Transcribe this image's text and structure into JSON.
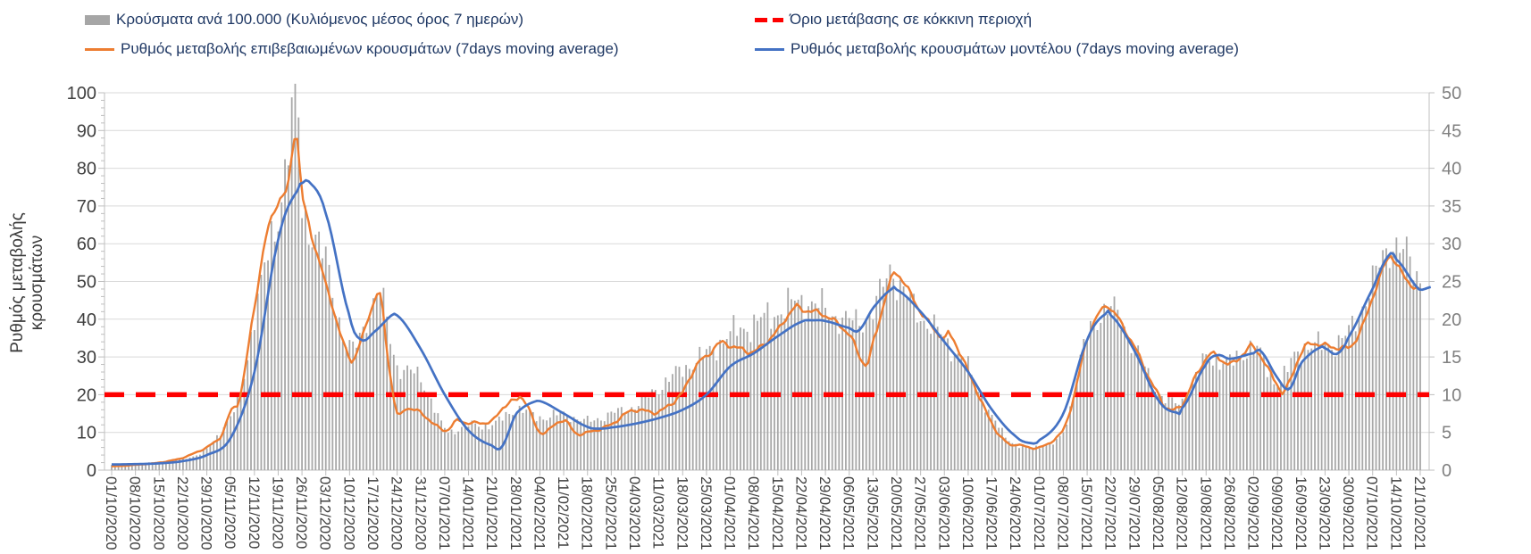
{
  "legend": {
    "items": [
      {
        "label": "Κρούσματα ανά 100.000 (Κυλιόμενος μέσος όρος 7 ημερών)",
        "type": "bar",
        "color": "#a6a6a6"
      },
      {
        "label": "Όριο μετάβασης σε κόκκινη περιοχή",
        "type": "dash",
        "color": "#fe0000"
      },
      {
        "label": "Ρυθμός μεταβολής επιβεβαιωμένων κρουσμάτων (7days moving average)",
        "type": "line",
        "color": "#ed7d31"
      },
      {
        "label": "Ρυθμός μεταβολής κρουσμάτων μοντέλου (7days moving average)",
        "type": "line",
        "color": "#4472c4"
      }
    ]
  },
  "chart_data": {
    "type": "bar",
    "subtype": "combo-bar-and-lines",
    "title": "",
    "grid": true,
    "legend_position": "top",
    "categories": [
      "01/10/2020",
      "08/10/2020",
      "15/10/2020",
      "22/10/2020",
      "29/10/2020",
      "05/11/2020",
      "12/11/2020",
      "19/11/2020",
      "26/11/2020",
      "03/12/2020",
      "10/12/2020",
      "17/12/2020",
      "24/12/2020",
      "31/12/2020",
      "07/01/2021",
      "14/01/2021",
      "21/01/2021",
      "28/01/2021",
      "04/02/2021",
      "11/02/2021",
      "18/02/2021",
      "25/02/2021",
      "04/03/2021",
      "11/03/2021",
      "18/03/2021",
      "25/03/2021",
      "01/04/2021",
      "08/04/2021",
      "15/04/2021",
      "22/04/2021",
      "29/04/2021",
      "06/05/2021",
      "13/05/2021",
      "20/05/2021",
      "27/05/2021",
      "03/06/2021",
      "10/06/2021",
      "17/06/2021",
      "24/06/2021",
      "01/07/2021",
      "08/07/2021",
      "15/07/2021",
      "22/07/2021",
      "29/07/2021",
      "05/08/2021",
      "12/08/2021",
      "19/08/2021",
      "26/08/2021",
      "02/09/2021",
      "09/09/2021",
      "16/09/2021",
      "23/09/2021",
      "30/09/2021",
      "07/10/2021",
      "14/10/2021",
      "21/10/2021"
    ],
    "left_axis": {
      "label": "Ρυθμός μεταβολής κρουσμάτων",
      "min": 0,
      "max": 100,
      "step": 10,
      "minor_step": 2,
      "tick_color": "#404040"
    },
    "right_axis": {
      "label": "",
      "min": 0,
      "max": 50,
      "step": 5,
      "tick_color": "#808080"
    },
    "threshold": {
      "label": "Όριο μετάβασης σε κόκκινη περιοχή",
      "value_left_axis": 20,
      "color": "#fe0000"
    },
    "series": [
      {
        "name": "Κρούσματα ανά 100.000 (Κυλιόμενος μέσος όρος 7 ημερών)",
        "type": "bar",
        "axis": "right",
        "color": "#a8a8a8",
        "frequency": "daily",
        "weekly_values": [
          0.7,
          0.9,
          1.0,
          1.5,
          2.8,
          7,
          21,
          34,
          35,
          27.5,
          16,
          22,
          14,
          12.2,
          5.5,
          6,
          6,
          8,
          7,
          7.4,
          6.5,
          7.5,
          8.5,
          11,
          13.4,
          15.4,
          18,
          19.4,
          21,
          22.4,
          21.3,
          19.7,
          21,
          24.8,
          20.5,
          17.4,
          13.4,
          7,
          3.4,
          3.2,
          5.2,
          17.6,
          21.3,
          16.2,
          10.3,
          9.1,
          14.7,
          14.2,
          16.2,
          11.8,
          16.2,
          16.5,
          18.2,
          24.9,
          30,
          25.6
        ],
        "extra_points": [
          [
            5.4,
            10
          ],
          [
            7.8,
            48
          ],
          [
            11.3,
            23
          ],
          [
            32.8,
            27
          ],
          [
            53.9,
            30.5
          ]
        ]
      },
      {
        "name": "Ρυθμός μεταβολής επιβεβαιωμένων κρουσμάτων (7days moving average)",
        "type": "line",
        "axis": "left",
        "color": "#ed7d31",
        "weekly_values": [
          1,
          1.4,
          2,
          3.3,
          6,
          15.5,
          43,
          71,
          73,
          49,
          30,
          44,
          15,
          15,
          10.5,
          12.5,
          13,
          18.5,
          10,
          13.3,
          10,
          12,
          16,
          15.5,
          20.5,
          30,
          33,
          31.5,
          37,
          42.5,
          41,
          36,
          34,
          52,
          42,
          35,
          26,
          12.5,
          6.8,
          6,
          10.5,
          35,
          42.5,
          32.5,
          20,
          17.5,
          29.5,
          28,
          32.5,
          23,
          31,
          33,
          32.5,
          46,
          54.5,
          47.5
        ],
        "extra_points": [
          [
            4.6,
            9
          ],
          [
            5.4,
            20
          ],
          [
            6.5,
            62
          ],
          [
            7.4,
            75
          ],
          [
            7.75,
            89.5
          ],
          [
            8.4,
            62
          ],
          [
            10.4,
            33
          ],
          [
            11.3,
            46
          ],
          [
            11.6,
            30
          ],
          [
            12.4,
            16.5
          ],
          [
            14.5,
            13
          ],
          [
            16.5,
            17
          ],
          [
            17.3,
            19
          ],
          [
            19.5,
            9.8
          ],
          [
            21.5,
            14.5
          ],
          [
            24.6,
            28
          ],
          [
            25.5,
            33.5
          ],
          [
            28.7,
            43
          ],
          [
            31.7,
            28
          ],
          [
            32.7,
            49
          ],
          [
            35.2,
            36
          ],
          [
            37.7,
            7
          ],
          [
            40.5,
            21
          ],
          [
            41.7,
            43
          ],
          [
            44.5,
            16
          ],
          [
            45.5,
            24
          ],
          [
            46.3,
            30.7
          ],
          [
            47.6,
            31
          ],
          [
            49.3,
            21
          ],
          [
            50.4,
            33.5
          ],
          [
            52.5,
            37
          ],
          [
            53.7,
            56.5
          ],
          [
            54.4,
            50.5
          ]
        ]
      },
      {
        "name": "Ρυθμός μεταβολής κρουσμάτων μοντέλου (7days moving average)",
        "type": "line",
        "axis": "left",
        "color": "#4472c4",
        "weekly_values": [
          1.5,
          1.6,
          1.8,
          2.4,
          4,
          8.5,
          26,
          61,
          76,
          68,
          41,
          36.5,
          41,
          32,
          20,
          10.5,
          6.5,
          15,
          18.3,
          15,
          11.5,
          11.3,
          12.3,
          13.8,
          16,
          20,
          27.5,
          31,
          35.5,
          39.3,
          39.5,
          37.7,
          43,
          47.8,
          42,
          34,
          26,
          16,
          9,
          8,
          15,
          34.5,
          41,
          31.5,
          18.5,
          16.5,
          28,
          29.5,
          31,
          24.5,
          28.5,
          32.3,
          35.5,
          48,
          55.8,
          47.7
        ],
        "extra_points": [
          [
            7.8,
            74
          ],
          [
            8.3,
            76.3
          ],
          [
            10.5,
            34.5
          ],
          [
            11.9,
            41.5
          ],
          [
            16.4,
            6.2
          ],
          [
            17.9,
            18.4
          ],
          [
            20.5,
            11
          ],
          [
            29.5,
            39.7
          ],
          [
            31.4,
            37
          ],
          [
            32.8,
            48
          ],
          [
            38.6,
            7.2
          ],
          [
            41.8,
            41.5
          ],
          [
            44.8,
            15.2
          ],
          [
            46.5,
            30.5
          ],
          [
            48.3,
            31.5
          ],
          [
            49.5,
            21.5
          ],
          [
            50.8,
            32.5
          ],
          [
            51.5,
            30.8
          ],
          [
            53.7,
            57
          ],
          [
            55,
            47.7
          ],
          [
            55.5,
            48.6
          ]
        ]
      }
    ]
  }
}
